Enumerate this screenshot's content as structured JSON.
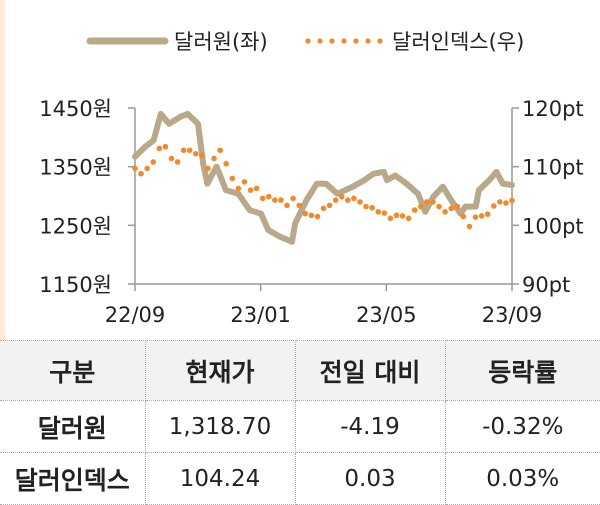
{
  "chart_data": {
    "type": "line",
    "legend": {
      "placement": "top",
      "items": [
        "달러원(좌)",
        "달러인덱스(우)"
      ]
    },
    "x_ticks": [
      "22/09",
      "23/01",
      "23/05",
      "23/09"
    ],
    "x_range": [
      "2022-09-01",
      "2023-09-01"
    ],
    "y_left": {
      "ticks": [
        "1450원",
        "1350원",
        "1250원",
        "1150원"
      ],
      "range": [
        1150,
        1450
      ]
    },
    "y_right": {
      "ticks": [
        "120pt",
        "110pt",
        "100pt",
        "90pt"
      ],
      "range": [
        90,
        120
      ]
    },
    "grid": false,
    "series": [
      {
        "name": "달러원(좌)",
        "axis": "left",
        "style": "thick-line",
        "color": "#b9a98a",
        "points": [
          [
            "2022-09-01",
            1367
          ],
          [
            "2022-09-11",
            1384
          ],
          [
            "2022-09-19",
            1395
          ],
          [
            "2022-09-26",
            1440
          ],
          [
            "2022-10-04",
            1423
          ],
          [
            "2022-10-15",
            1435
          ],
          [
            "2022-10-22",
            1440
          ],
          [
            "2022-11-01",
            1423
          ],
          [
            "2022-11-06",
            1355
          ],
          [
            "2022-11-10",
            1321
          ],
          [
            "2022-11-19",
            1350
          ],
          [
            "2022-11-28",
            1310
          ],
          [
            "2022-12-10",
            1304
          ],
          [
            "2022-12-21",
            1276
          ],
          [
            "2023-01-01",
            1270
          ],
          [
            "2023-01-08",
            1242
          ],
          [
            "2023-01-19",
            1231
          ],
          [
            "2023-01-31",
            1222
          ],
          [
            "2023-02-03",
            1253
          ],
          [
            "2023-02-14",
            1293
          ],
          [
            "2023-02-24",
            1321
          ],
          [
            "2023-03-05",
            1321
          ],
          [
            "2023-03-16",
            1304
          ],
          [
            "2023-03-31",
            1316
          ],
          [
            "2023-04-11",
            1327
          ],
          [
            "2023-04-20",
            1338
          ],
          [
            "2023-04-30",
            1341
          ],
          [
            "2023-05-03",
            1327
          ],
          [
            "2023-05-11",
            1335
          ],
          [
            "2023-05-22",
            1321
          ],
          [
            "2023-06-02",
            1304
          ],
          [
            "2023-06-09",
            1273
          ],
          [
            "2023-06-17",
            1299
          ],
          [
            "2023-06-26",
            1316
          ],
          [
            "2023-07-04",
            1293
          ],
          [
            "2023-07-13",
            1270
          ],
          [
            "2023-07-18",
            1282
          ],
          [
            "2023-07-28",
            1282
          ],
          [
            "2023-07-31",
            1310
          ],
          [
            "2023-08-10",
            1327
          ],
          [
            "2023-08-17",
            1341
          ],
          [
            "2023-08-23",
            1321
          ],
          [
            "2023-09-01",
            1318.7
          ]
        ]
      },
      {
        "name": "달러인덱스(우)",
        "axis": "right",
        "style": "dotted",
        "color": "#f08a2c",
        "frequency": "weekly",
        "values": [
          109.7,
          108.8,
          109.7,
          110.8,
          113.1,
          113.4,
          111.4,
          110.8,
          112.8,
          112.8,
          112.2,
          111.9,
          109.7,
          111.4,
          112.8,
          110.5,
          108.0,
          106.3,
          107.4,
          106.0,
          106.3,
          104.6,
          104.9,
          104.3,
          104.3,
          103.4,
          104.6,
          103.4,
          102.0,
          101.7,
          101.5,
          102.9,
          103.4,
          104.3,
          104.9,
          104.3,
          104.6,
          104.0,
          103.2,
          103.0,
          102.3,
          102.1,
          101.2,
          101.7,
          101.6,
          101.2,
          102.6,
          103.2,
          104.0,
          104.0,
          103.2,
          102.3,
          102.9,
          103.2,
          101.5,
          99.8,
          101.4,
          101.6,
          101.9,
          103.3,
          104.0,
          103.8,
          104.24
        ]
      }
    ]
  },
  "table": {
    "headers": [
      "구분",
      "현재가",
      "전일 대비",
      "등락률"
    ],
    "rows": [
      [
        "달러원",
        "1,318.70",
        "-4.19",
        "-0.32%"
      ],
      [
        "달러인덱스",
        "104.24",
        "0.03",
        "0.03%"
      ]
    ]
  }
}
